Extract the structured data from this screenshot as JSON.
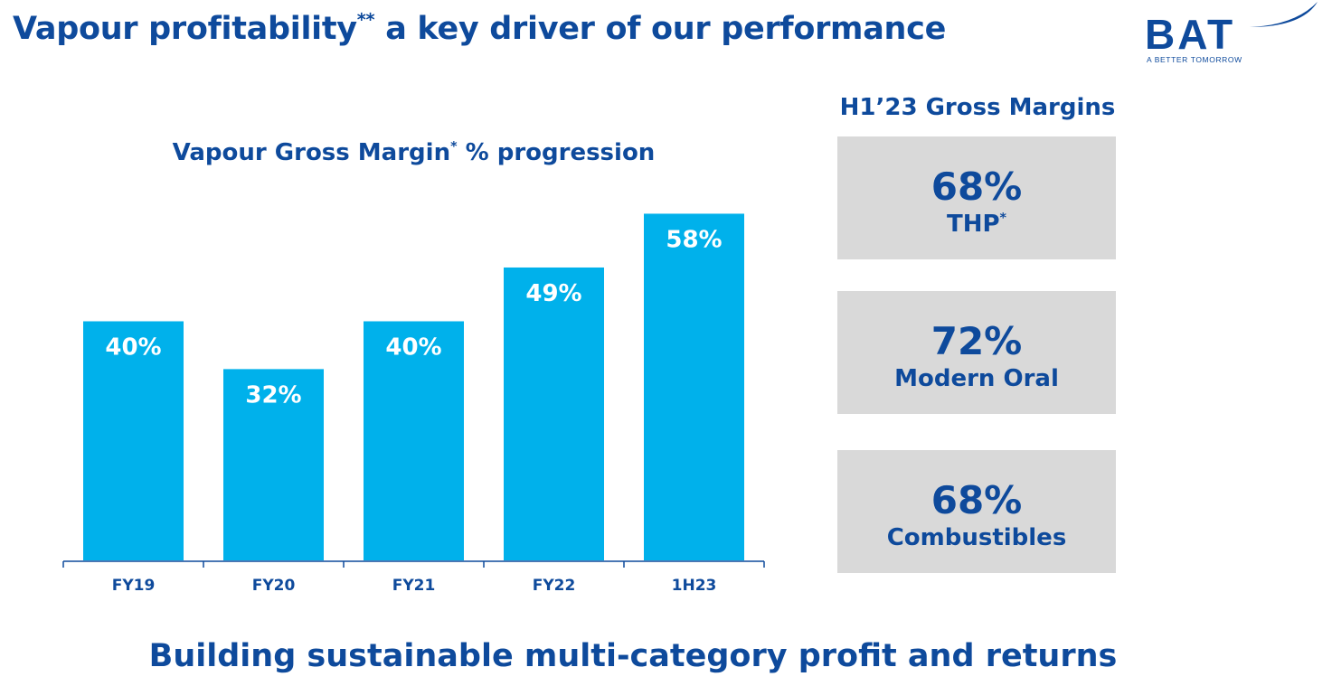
{
  "header": {
    "title": "Vapour profitability",
    "title_sup": "**",
    "title_rest": " a key driver of our performance"
  },
  "logo": {
    "text": "BAT",
    "tagline": "A BETTER TOMORROW",
    "color": "#0e4a9c"
  },
  "chart_data": {
    "type": "bar",
    "title": "Vapour Gross Margin",
    "title_sup": "*",
    "title_rest": " % progression",
    "categories": [
      "FY19",
      "FY20",
      "FY21",
      "FY22",
      "1H23"
    ],
    "values": [
      40,
      32,
      40,
      49,
      58
    ],
    "data_labels": [
      "40%",
      "32%",
      "40%",
      "49%",
      "58%"
    ],
    "ylim": [
      0,
      62
    ],
    "bar_color": "#00b1eb",
    "axis_color": "#0e4a9c",
    "grid": false
  },
  "gross_margins": {
    "heading": "H1’23 Gross Margins",
    "cards": [
      {
        "value": "68%",
        "label": "THP",
        "label_sup": "*"
      },
      {
        "value": "72%",
        "label": "Modern Oral",
        "label_sup": ""
      },
      {
        "value": "68%",
        "label": "Combustibles",
        "label_sup": ""
      }
    ],
    "card_color": "#d9d9d9"
  },
  "footer": {
    "tagline": "Building sustainable multi-category profit and returns"
  },
  "colors": {
    "brand_navy": "#0e4a9c",
    "bar_blue": "#00b1eb"
  }
}
